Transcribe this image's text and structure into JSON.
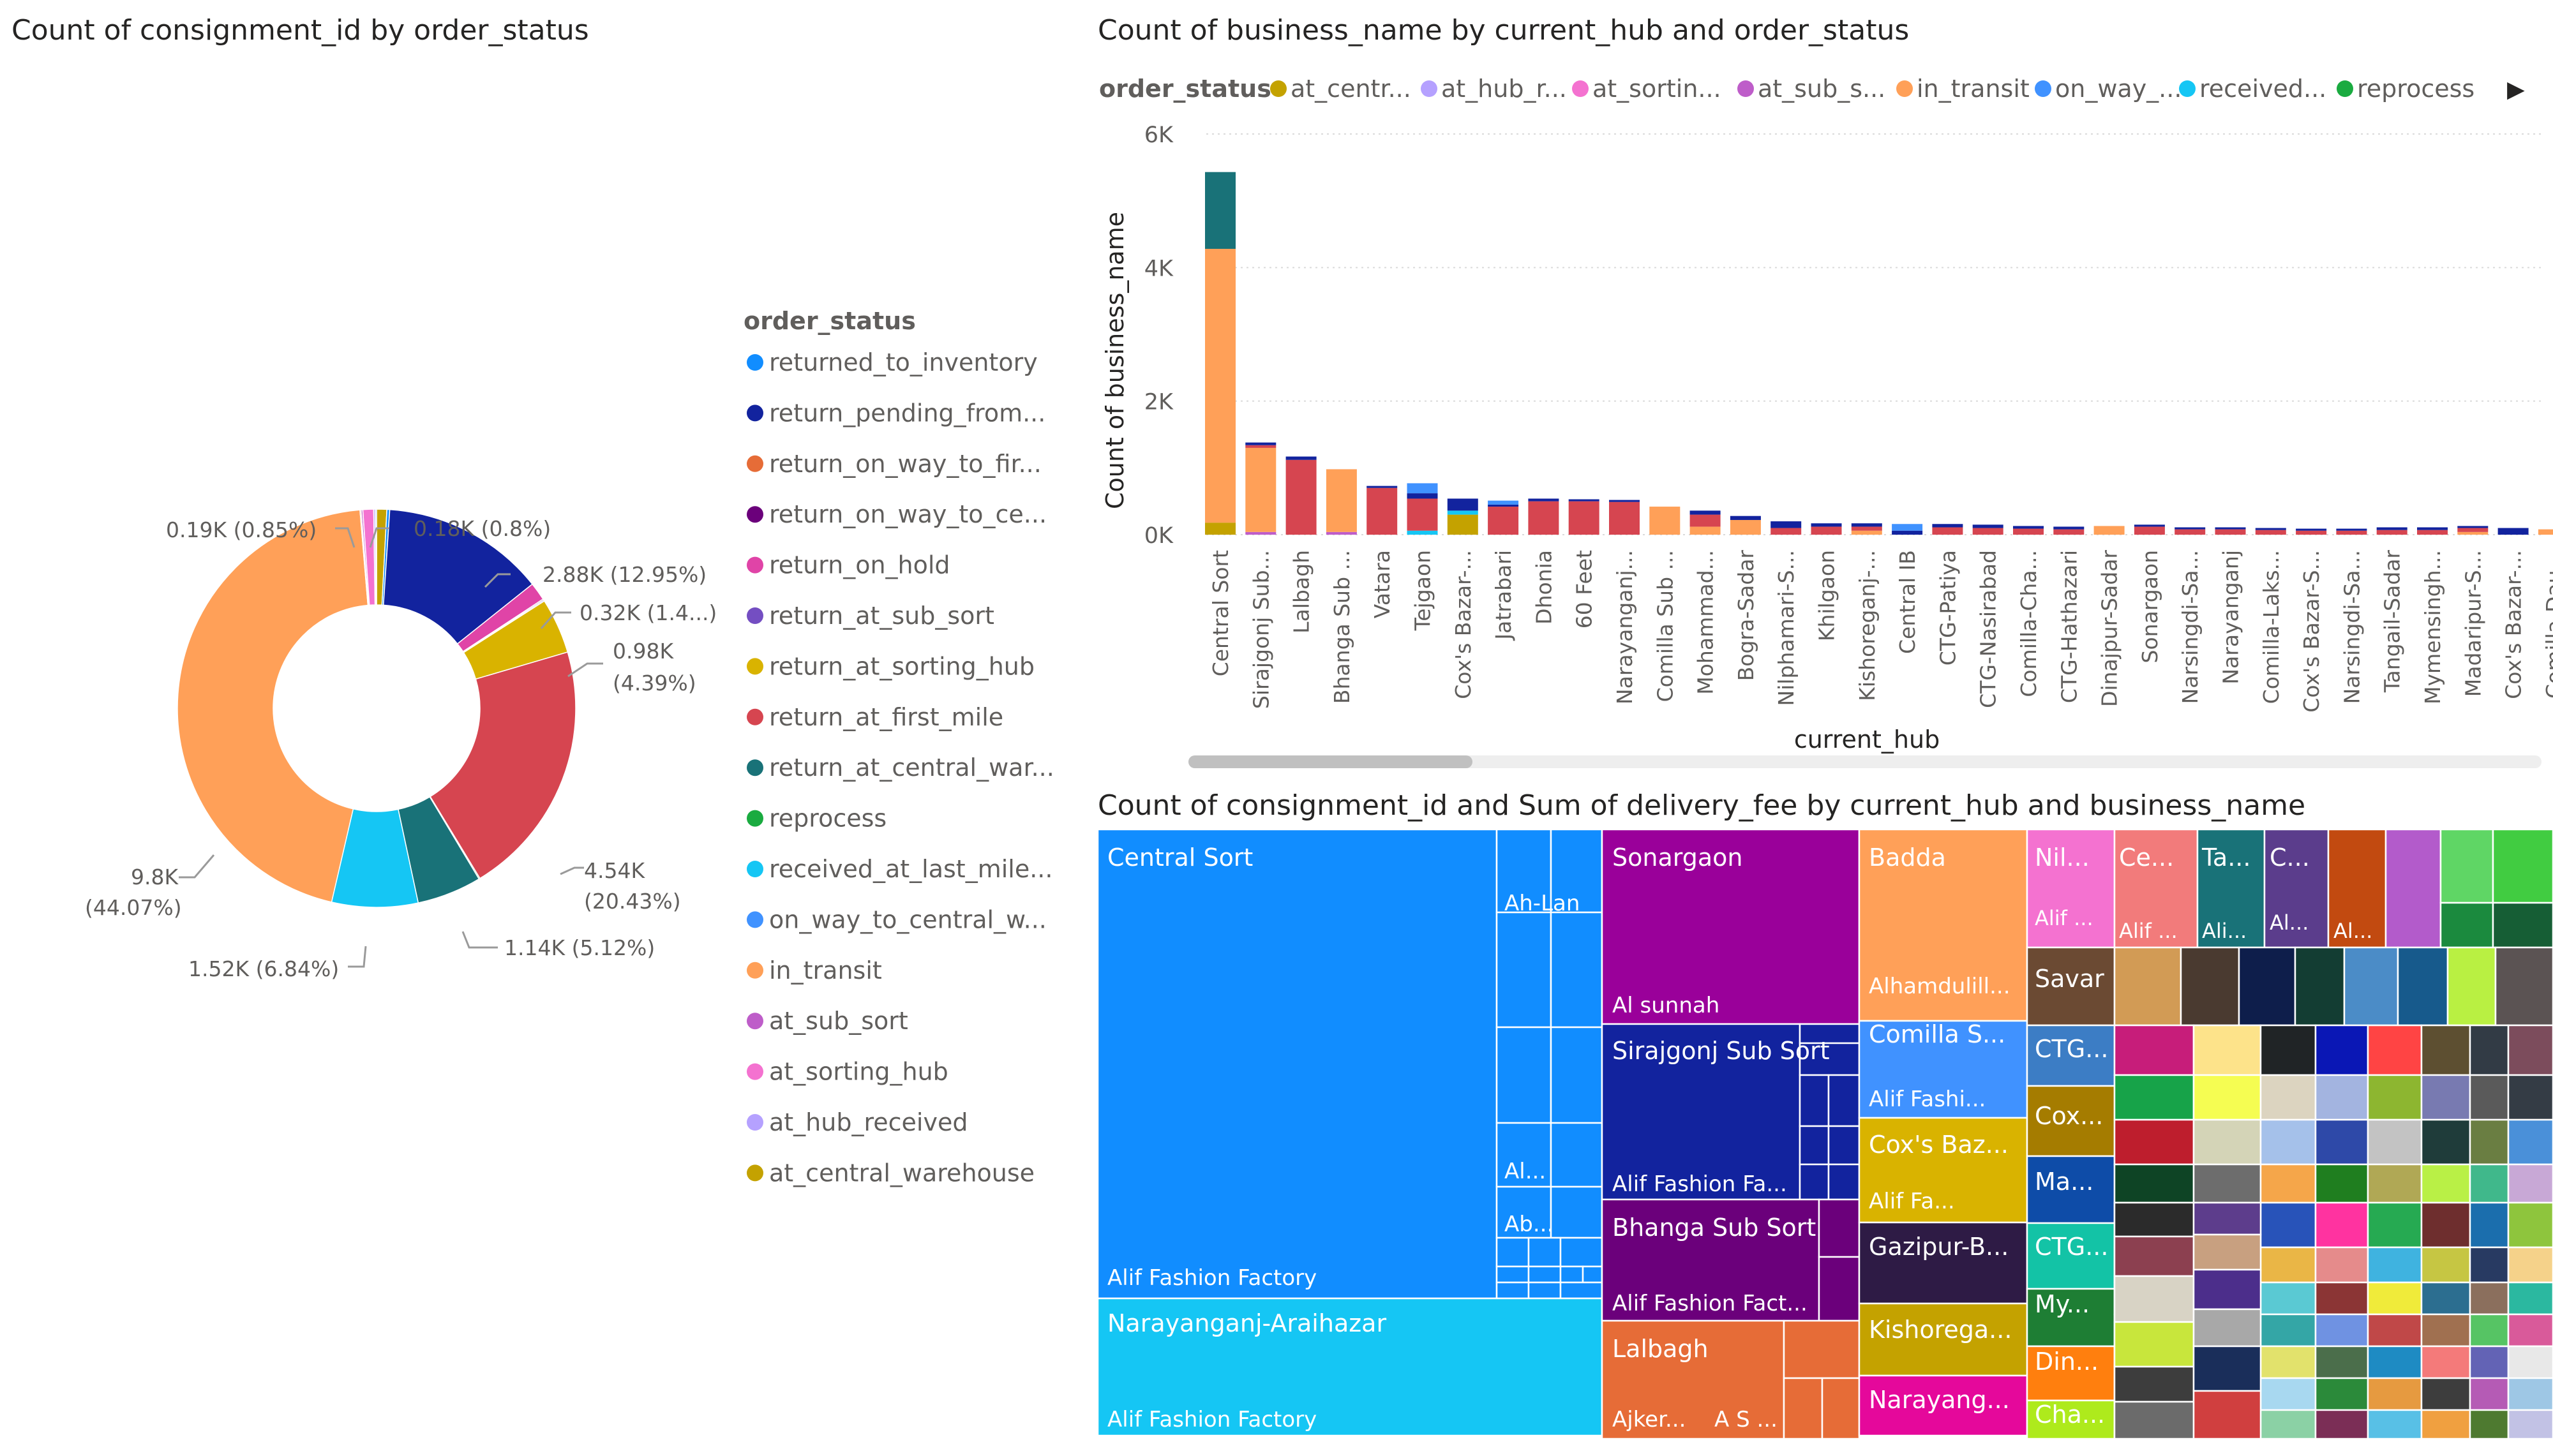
{
  "donut_chart": {
    "title": "Count of consignment_id by order_status",
    "legend_title": "order_status",
    "legend_items": [
      {
        "label": "returned_to_inventory",
        "color": "#118DFF"
      },
      {
        "label": "return_pending_from...",
        "color": "#12239E"
      },
      {
        "label": "return_on_way_to_fir...",
        "color": "#E66C37"
      },
      {
        "label": "return_on_way_to_ce...",
        "color": "#6B007B"
      },
      {
        "label": "return_on_hold",
        "color": "#E044A7"
      },
      {
        "label": "return_at_sub_sort",
        "color": "#744EC2"
      },
      {
        "label": "return_at_sorting_hub",
        "color": "#D9B300"
      },
      {
        "label": "return_at_first_mile",
        "color": "#D64550"
      },
      {
        "label": "return_at_central_war...",
        "color": "#197278"
      },
      {
        "label": "reprocess",
        "color": "#1AAB40"
      },
      {
        "label": "received_at_last_mile...",
        "color": "#15C6F4"
      },
      {
        "label": "on_way_to_central_w...",
        "color": "#4092FF"
      },
      {
        "label": "in_transit",
        "color": "#FFA058"
      },
      {
        "label": "at_sub_sort",
        "color": "#BE5DC9"
      },
      {
        "label": "at_sorting_hub",
        "color": "#F472D0"
      },
      {
        "label": "at_hub_received",
        "color": "#B5A1FF"
      },
      {
        "label": "at_central_warehouse",
        "color": "#C4A200"
      }
    ],
    "labels": {
      "l_central_wh": "0.18K (0.8%)",
      "l_sorting": "0.19K (0.85%)",
      "l_pending": "2.88K (12.95%)",
      "l_onhold": "0.32K (1.4...)",
      "l_sortinghub_1": "0.98K",
      "l_sortinghub_2": "(4.39%)",
      "l_firstmile_1": "4.54K",
      "l_firstmile_2": "(20.43%)",
      "l_centralwar": "1.14K (5.12%)",
      "l_lastmile": "1.52K (6.84%)",
      "l_transit_1": "9.8K",
      "l_transit_2": "(44.07%)"
    }
  },
  "bar_chart": {
    "title": "Count of business_name by current_hub and order_status",
    "legend_title": "order_status",
    "legend_items": [
      {
        "label": "at_centr...",
        "color": "#C4A200"
      },
      {
        "label": "at_hub_r...",
        "color": "#B5A1FF"
      },
      {
        "label": "at_sortin...",
        "color": "#F472D0"
      },
      {
        "label": "at_sub_s...",
        "color": "#BE5DC9"
      },
      {
        "label": "in_transit",
        "color": "#FFA058"
      },
      {
        "label": "on_way_...",
        "color": "#4092FF"
      },
      {
        "label": "received...",
        "color": "#15C6F4"
      },
      {
        "label": "reprocess",
        "color": "#1AAB40"
      }
    ],
    "legend_arrow": "▶",
    "x_label": "current_hub",
    "y_label": "Count of business_name",
    "y_ticks": [
      "0K",
      "2K",
      "4K",
      "6K"
    ]
  },
  "treemap": {
    "title": "Count of consignment_id and Sum of delivery_fee by current_hub and business_name",
    "labels": {
      "central_sort": "Central Sort",
      "ah_lan": "Ah-Lan",
      "al_dot": "Al...",
      "ab_dot": "Ab...",
      "alif_ff": "Alif Fashion Factory",
      "narayanganj_ar": "Narayanganj-Araihazar",
      "alif_ff2": "Alif Fashion Factory",
      "sonargaon": "Sonargaon",
      "al_sunnah": "Al sunnah",
      "sirajgonj": "Sirajgonj Sub Sort",
      "alif_fa_fa": "Alif Fashion Fa...",
      "bhanga": "Bhanga Sub Sort",
      "alif_fact": "Alif Fashion Fact...",
      "lalbagh": "Lalbagh",
      "ajker": "Ajker...",
      "a_s": "A S ...",
      "badda": "Badda",
      "alhamdulill": "Alhamdulill...",
      "comilla_s": "Comilla S...",
      "alif_fashi": "Alif Fashi...",
      "coxs_baz": "Cox's Baz...",
      "alif_fa": "Alif Fa...",
      "gazipur": "Gazipur-B...",
      "kishorega": "Kishorega...",
      "narayang": "Narayang...",
      "nil": "Nil...",
      "alif_small": "Alif ...",
      "ce": "Ce...",
      "alif_ce": "Alif ...",
      "ta": "Ta...",
      "ali_ta": "Ali...",
      "c_dot": "C...",
      "al_c": "Al...",
      "al_d": "Al...",
      "savar": "Savar",
      "ctg": "CTG...",
      "cox": "Cox...",
      "ma": "Ma...",
      "ctg2": "CTG...",
      "my": "My...",
      "din": "Din...",
      "cha": "Cha..."
    }
  },
  "chart_data": [
    {
      "type": "pie",
      "title": "Count of consignment_id by order_status",
      "legend_title": "order_status",
      "categories": [
        "at_central_warehouse",
        "returned_to_inventory",
        "return_pending_from...",
        "return_on_hold",
        "return_on_way_to_ce...",
        "return_at_sub_sort",
        "return_at_sorting_hub",
        "return_at_first_mile",
        "reprocess",
        "return_at_central_war...",
        "received_at_last_mile...",
        "in_transit",
        "return_on_way_to_fir...",
        "at_sub_sort",
        "at_sorting_hub",
        "at_hub_received",
        "on_way_to_central_w..."
      ],
      "values": [
        0.18,
        0.05,
        2.88,
        0.32,
        0.02,
        0.02,
        0.98,
        4.54,
        0.02,
        1.14,
        1.52,
        9.8,
        0.02,
        0.03,
        0.19,
        0.03,
        0.02
      ],
      "colors": [
        "#C4A200",
        "#118DFF",
        "#12239E",
        "#E044A7",
        "#6B007B",
        "#744EC2",
        "#D9B300",
        "#D64550",
        "#1AAB40",
        "#197278",
        "#15C6F4",
        "#FFA058",
        "#E66C37",
        "#BE5DC9",
        "#F472D0",
        "#B5A1FF",
        "#4092FF"
      ],
      "unit": "K"
    },
    {
      "type": "bar",
      "title": "Count of business_name by current_hub and order_status",
      "xlabel": "current_hub",
      "ylabel": "Count of business_name",
      "ylim": [
        0,
        6000
      ],
      "categories": [
        "Central Sort",
        "Sirajgonj Sub...",
        "Lalbagh",
        "Bhanga Sub ...",
        "Vatara",
        "Tejgaon",
        "Cox's Bazar-...",
        "Jatrabari",
        "Dhonia",
        "60 Feet",
        "Narayanganj...",
        "Comilla Sub ...",
        "Mohammad...",
        "Bogra-Sadar",
        "Nilphamari-S...",
        "Khilgaon",
        "Kishoreganj-...",
        "Central IB",
        "CTG-Patiya",
        "CTG-Nasirabad",
        "Comilla-Cha...",
        "CTG-Hathazari",
        "Dinajpur-Sadar",
        "Sonargaon",
        "Narsingdi-Sa...",
        "Narayanganj",
        "Comilla-Laks...",
        "Cox's Bazar-S...",
        "Narsingdi-Sa...",
        "Tangail-Sadar",
        "Mymensingh...",
        "Madaripur-S...",
        "Cox's Bazar-...",
        "Comilla-Dau..."
      ],
      "series": [
        {
          "name": "at_central_warehouse",
          "color": "#C4A200",
          "values": [
            180,
            0,
            0,
            0,
            0,
            0,
            300,
            0,
            0,
            0,
            0,
            0,
            0,
            0,
            0,
            0,
            0,
            0,
            0,
            0,
            0,
            0,
            0,
            0,
            0,
            0,
            0,
            0,
            0,
            0,
            0,
            0,
            0,
            0
          ]
        },
        {
          "name": "at_sub_sort",
          "color": "#BE5DC9",
          "values": [
            0,
            40,
            0,
            40,
            0,
            0,
            0,
            0,
            0,
            0,
            0,
            0,
            0,
            0,
            0,
            0,
            0,
            0,
            0,
            0,
            0,
            0,
            0,
            0,
            0,
            0,
            0,
            0,
            0,
            0,
            0,
            0,
            0,
            0
          ]
        },
        {
          "name": "received_at_last_mile",
          "color": "#15C6F4",
          "values": [
            0,
            0,
            0,
            0,
            0,
            60,
            60,
            0,
            0,
            0,
            0,
            0,
            0,
            0,
            0,
            0,
            0,
            0,
            0,
            0,
            0,
            0,
            0,
            0,
            0,
            0,
            0,
            0,
            0,
            0,
            0,
            0,
            0,
            0
          ]
        },
        {
          "name": "in_transit",
          "color": "#FFA058",
          "values": [
            4100,
            1260,
            0,
            940,
            0,
            0,
            0,
            0,
            0,
            0,
            0,
            420,
            120,
            220,
            0,
            0,
            60,
            0,
            0,
            0,
            0,
            0,
            130,
            0,
            0,
            0,
            0,
            0,
            0,
            0,
            0,
            40,
            0,
            80
          ]
        },
        {
          "name": "return_at_first_mile",
          "color": "#D64550",
          "values": [
            0,
            40,
            1120,
            0,
            700,
            480,
            0,
            420,
            500,
            500,
            490,
            0,
            180,
            0,
            100,
            120,
            60,
            0,
            110,
            100,
            90,
            80,
            0,
            120,
            80,
            80,
            70,
            60,
            60,
            70,
            70,
            60,
            0,
            0
          ]
        },
        {
          "name": "return_at_central_war",
          "color": "#197278",
          "values": [
            1150,
            0,
            0,
            0,
            0,
            0,
            0,
            0,
            0,
            0,
            0,
            0,
            0,
            0,
            0,
            0,
            0,
            0,
            0,
            0,
            0,
            0,
            0,
            0,
            0,
            0,
            0,
            0,
            0,
            0,
            0,
            0,
            0,
            0
          ]
        },
        {
          "name": "return_pending_from",
          "color": "#12239E",
          "values": [
            0,
            40,
            50,
            0,
            30,
            80,
            180,
            30,
            40,
            30,
            30,
            0,
            60,
            60,
            100,
            50,
            50,
            60,
            50,
            50,
            40,
            40,
            0,
            30,
            30,
            30,
            30,
            30,
            30,
            40,
            40,
            30,
            100,
            0
          ]
        },
        {
          "name": "on_way_to_central",
          "color": "#4092FF",
          "values": [
            0,
            0,
            0,
            0,
            0,
            150,
            0,
            60,
            0,
            0,
            0,
            0,
            0,
            0,
            0,
            0,
            0,
            100,
            0,
            0,
            0,
            0,
            0,
            0,
            0,
            0,
            0,
            0,
            0,
            0,
            0,
            0,
            0,
            0
          ]
        }
      ]
    },
    {
      "type": "treemap",
      "title": "Count of consignment_id and Sum of delivery_fee by current_hub and business_name",
      "groups": [
        "Central Sort",
        "Narayanganj-Araihazar",
        "Sonargaon",
        "Sirajgonj Sub Sort",
        "Bhanga Sub Sort",
        "Lalbagh",
        "Badda",
        "Comilla S...",
        "Cox's Baz...",
        "Gazipur-B...",
        "Kishorega...",
        "Narayang...",
        "Nil...",
        "Ce...",
        "Ta...",
        "C...",
        "Savar",
        "CTG...",
        "Cox...",
        "Ma...",
        "CTG...",
        "My...",
        "Din...",
        "Cha..."
      ]
    }
  ]
}
